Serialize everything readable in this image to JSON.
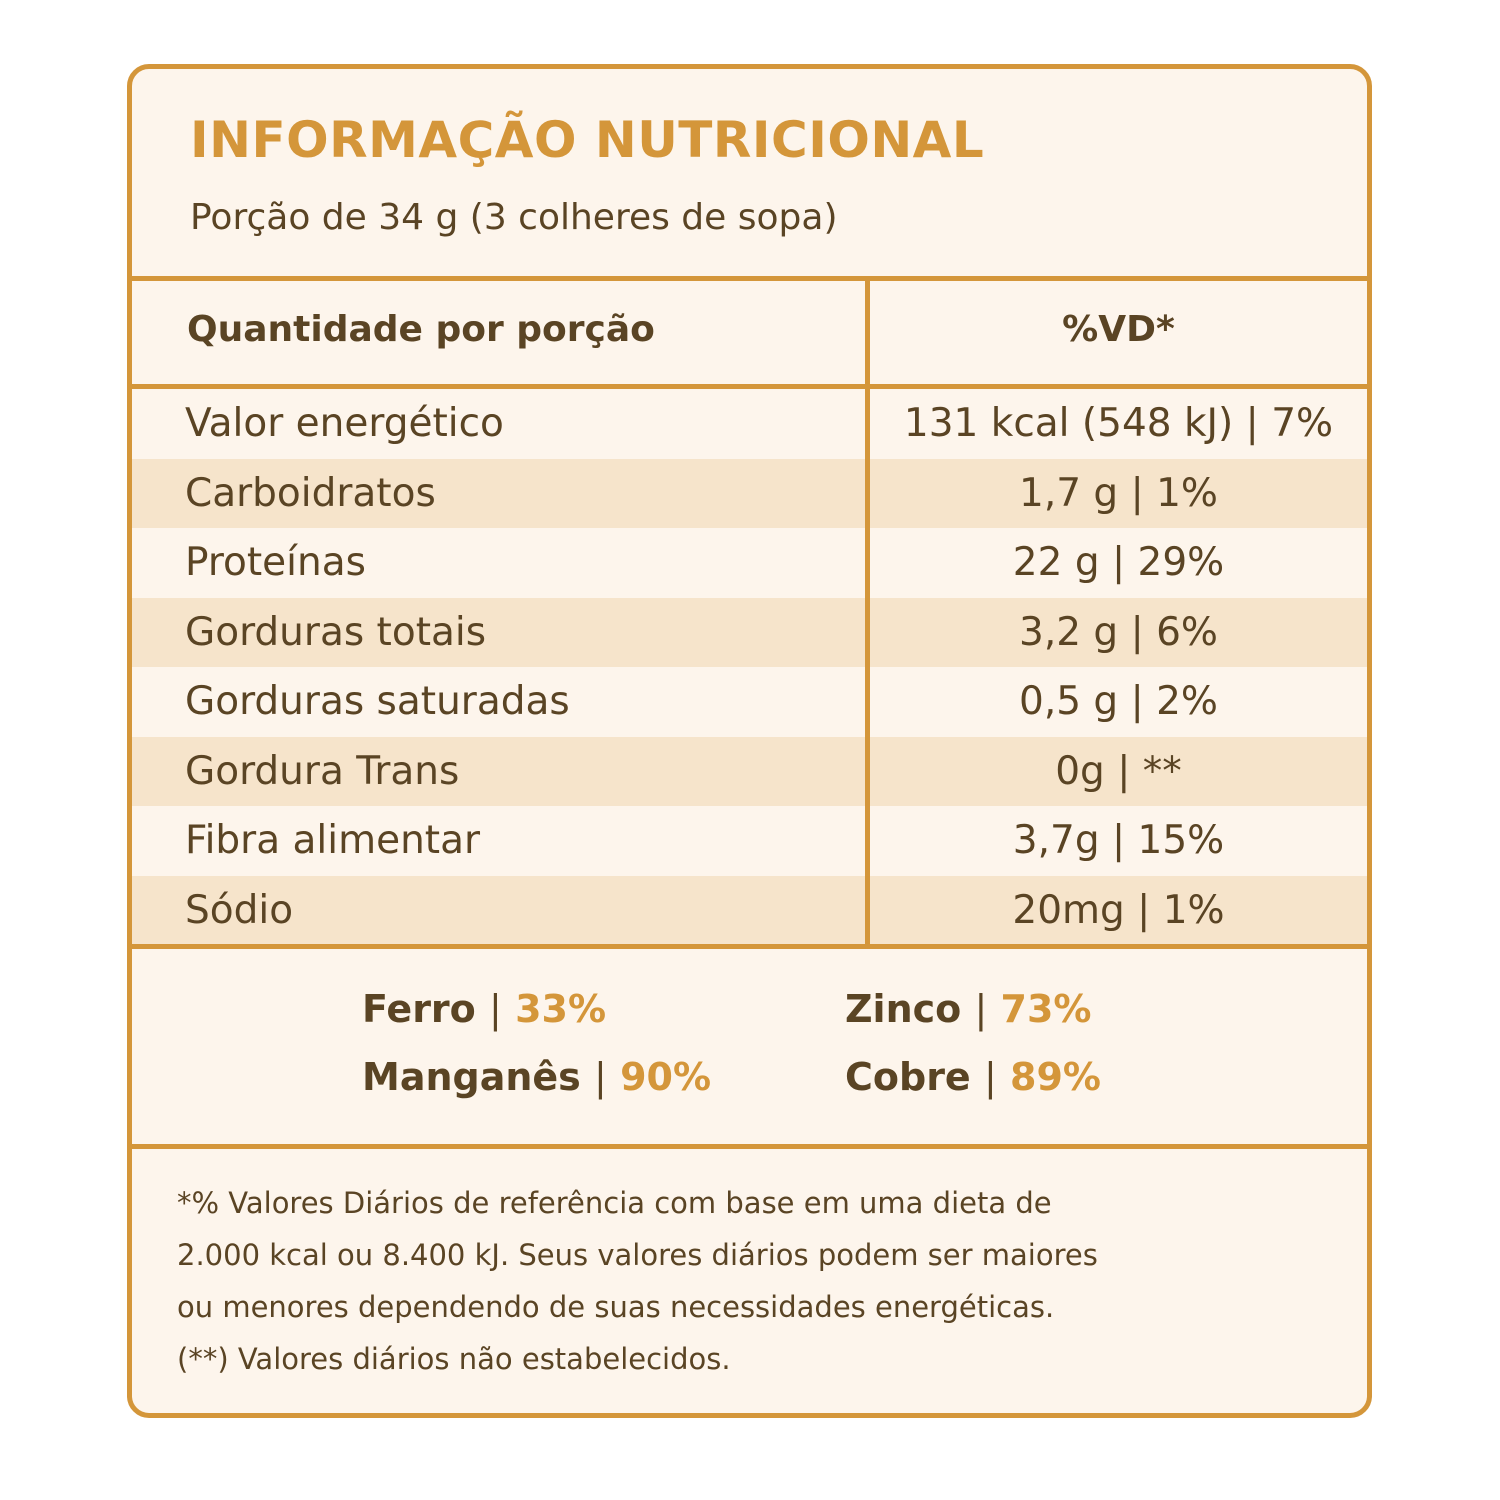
{
  "title": "INFORMAÇÃO NUTRICIONAL",
  "serving": "Porção de 34 g (3 colheres de sopa)",
  "header": {
    "left": "Quantidade por porção",
    "right": "%VD*"
  },
  "rows": [
    {
      "name": "Valor energético",
      "value": "131 kcal (548 kJ) | 7%"
    },
    {
      "name": "Carboidratos",
      "value": "1,7 g | 1%"
    },
    {
      "name": "Proteínas",
      "value": "22 g | 29%"
    },
    {
      "name": "Gorduras totais",
      "value": "3,2 g | 6%"
    },
    {
      "name": "Gorduras saturadas",
      "value": "0,5 g | 2%"
    },
    {
      "name": "Gordura Trans",
      "value": "0g | **"
    },
    {
      "name": "Fibra alimentar",
      "value": "3,7g | 15%"
    },
    {
      "name": "Sódio",
      "value": "20mg | 1%"
    }
  ],
  "minerals": [
    {
      "name": "Ferro",
      "separator": "|",
      "percent": "33%"
    },
    {
      "name": "Zinco",
      "separator": "|",
      "percent": "73%"
    },
    {
      "name": "Manganês",
      "separator": "|",
      "percent": "90%"
    },
    {
      "name": "Cobre",
      "separator": "|",
      "percent": "89%"
    }
  ],
  "footnote": {
    "lines": [
      "*% Valores Diários de referência com base em uma dieta de",
      "2.000 kcal ou 8.400 kJ. Seus valores diários podem ser maiores",
      "ou menores dependendo de suas necessidades energéticas.",
      "(**) Valores diários não estabelecidos."
    ]
  },
  "colors": {
    "accent": "#d4963a",
    "text": "#5a4424",
    "background": "#fdf5ec",
    "shaded_row": "#f6e4cb"
  }
}
